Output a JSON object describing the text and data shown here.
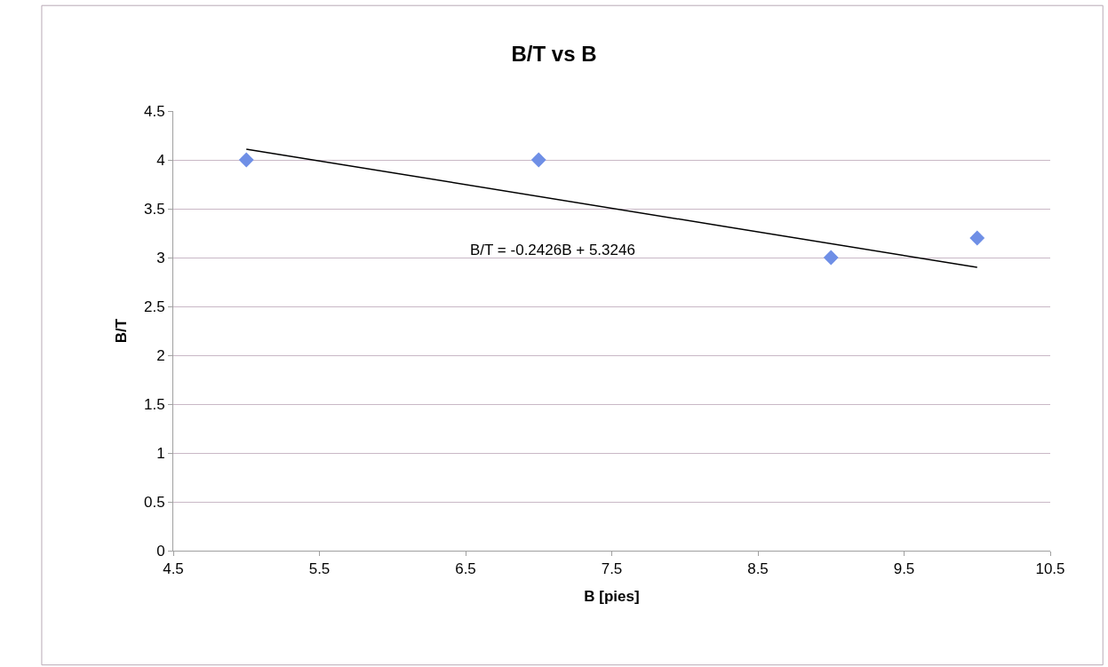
{
  "chart_data": {
    "type": "scatter",
    "title": "B/T vs B",
    "xlabel": "B [pies]",
    "ylabel": "B/T",
    "x": [
      5,
      7,
      9,
      10
    ],
    "series": [
      {
        "color": "#6f8fe6",
        "values": [
          4,
          4,
          3,
          3.2
        ],
        "marker": "diamond"
      },
      {
        "type": "line",
        "color": "#000000",
        "x": [
          5,
          10
        ],
        "values": [
          4.11,
          2.9
        ],
        "marker": "none"
      }
    ],
    "annotations": [
      "B/T = -0.2426B + 5.3246"
    ],
    "xlim": [
      4.5,
      10.5
    ],
    "xticks": [
      4.5,
      5.5,
      6.5,
      7.5,
      8.5,
      9.5,
      10.5
    ],
    "ylim": [
      0,
      4.5
    ],
    "yticks": [
      0,
      0.5,
      1,
      1.5,
      2,
      2.5,
      3,
      3.5,
      4,
      4.5
    ],
    "grid": "y"
  }
}
